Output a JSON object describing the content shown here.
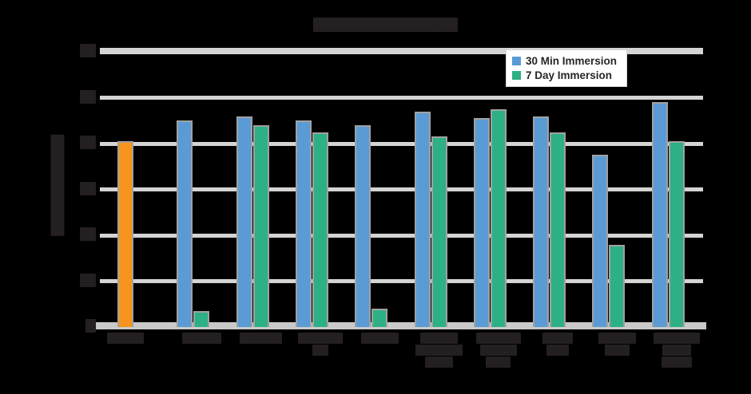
{
  "background": "#000000",
  "colors": {
    "series_blue": "#5B9BD5",
    "series_green": "#2EB086",
    "control_orange": "#F7941E",
    "gridline": "#D4D4D4",
    "axis_band": "#C9C9C9",
    "bar_outline": "#A1A1A1",
    "legend_text": "#262626",
    "dark_text_blob": "#242021"
  },
  "legend": {
    "items": [
      {
        "label": "30 Min Immersion",
        "color": "#5B9BD5"
      },
      {
        "label": "7 Day Immersion",
        "color": "#2EB086"
      }
    ]
  },
  "chart_data": {
    "type": "bar",
    "title": "Hardness After Immersion",
    "ylabel": "Hardness (Shore D)",
    "xlabel": "",
    "ylim": [
      0,
      60
    ],
    "yticks": [
      60,
      50,
      40,
      30,
      20,
      10,
      0
    ],
    "grid": true,
    "legend_position": "top-right",
    "categories": [
      "Control",
      "Acetone",
      "Gasoline",
      "Hydraulic Oil",
      "Toluene",
      "Sodium Hydroxide (10%)",
      "Isopropyl Alcohol (IPA)",
      "Diesel Fuel",
      "Skydrol LD-4",
      "Deionized Water (70°C)"
    ],
    "category_lines": [
      [
        "Control"
      ],
      [
        "Acetone"
      ],
      [
        "Gasoline"
      ],
      [
        "Hydraulic",
        "Oil"
      ],
      [
        "Toluene"
      ],
      [
        "Sodium",
        "Hydroxide",
        "(10%)"
      ],
      [
        "Isopropyl",
        "Alcohol",
        "(IPA)"
      ],
      [
        "Diesel",
        "Fuel"
      ],
      [
        "Skydrol",
        "LD-4"
      ],
      [
        "Deionized",
        "Water",
        "(70°C)"
      ]
    ],
    "series": [
      {
        "name": "30 Min Immersion",
        "color": "#5B9BD5",
        "values": [
          40.5,
          45,
          46,
          45,
          44,
          47,
          45.5,
          46,
          37.5,
          49
        ]
      },
      {
        "name": "7 Day Immersion",
        "color": "#2EB086",
        "values": [
          null,
          3.5,
          44,
          42.5,
          4,
          41.5,
          47.5,
          42.5,
          18,
          40.5
        ]
      }
    ],
    "control_bar_color": "#F7941E"
  }
}
